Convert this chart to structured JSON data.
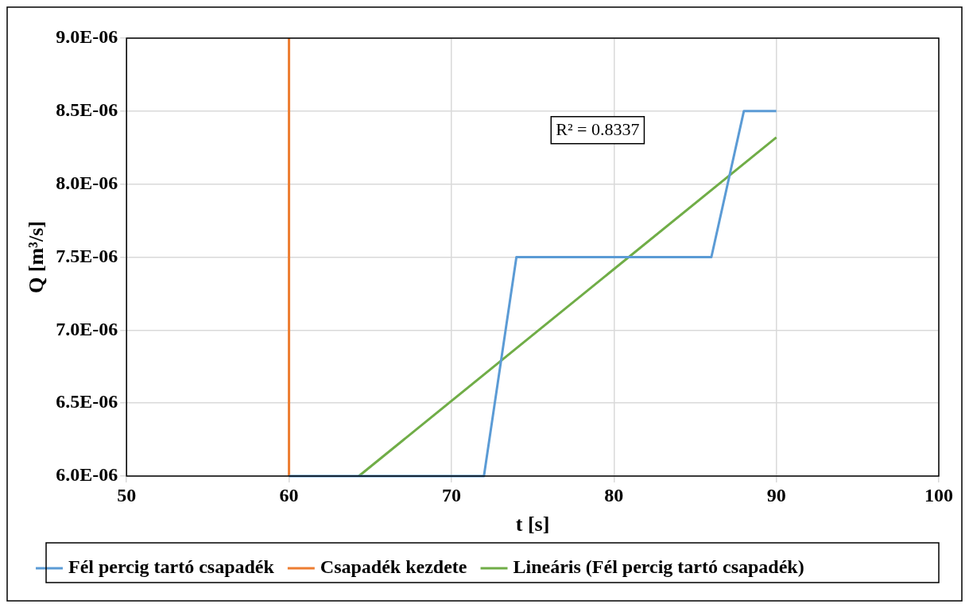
{
  "chart_data": {
    "type": "line",
    "xlabel": "t [s]",
    "ylabel": "Q [m³/s]",
    "xlim": [
      50,
      100
    ],
    "xticks": [
      50,
      60,
      70,
      80,
      90,
      100
    ],
    "ylim": [
      6e-06,
      9e-06
    ],
    "yticks": [
      {
        "value": 6e-06,
        "label": "6.0E-06"
      },
      {
        "value": 6.5e-06,
        "label": "6.5E-06"
      },
      {
        "value": 7e-06,
        "label": "7.0E-06"
      },
      {
        "value": 7.5e-06,
        "label": "7.5E-06"
      },
      {
        "value": 8e-06,
        "label": "8.0E-06"
      },
      {
        "value": 8.5e-06,
        "label": "8.5E-06"
      },
      {
        "value": 9e-06,
        "label": "9.0E-06"
      }
    ],
    "grid": true,
    "legend": "bottom",
    "marker": "none",
    "line_style": "solid",
    "series": [
      {
        "name": "Fél percig tartó csapadék",
        "color": "#5b9bd5",
        "x": [
          60,
          72,
          74,
          86,
          88,
          90
        ],
        "values": [
          6e-06,
          6e-06,
          7.5e-06,
          7.5e-06,
          8.5e-06,
          8.5e-06
        ]
      },
      {
        "name": "Csapadék kezdete",
        "color": "#ed7d31",
        "x": [
          60,
          60
        ],
        "values": [
          6e-06,
          9e-06
        ]
      },
      {
        "name": "Lineáris (Fél percig tartó csapadék)",
        "color": "#70ad47",
        "x": [
          64.3,
          90
        ],
        "values": [
          6e-06,
          8.32e-06
        ]
      }
    ],
    "annotations": [
      "R² = 0.8337"
    ]
  }
}
